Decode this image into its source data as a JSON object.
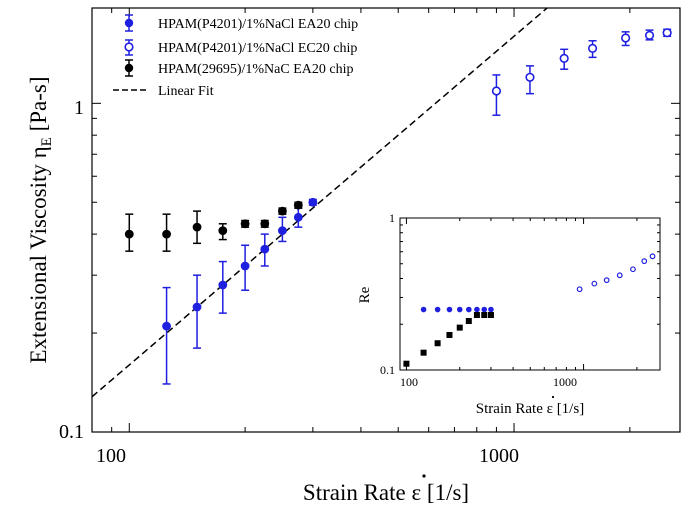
{
  "chart_data": [
    {
      "type": "scatter",
      "scale": "log-log",
      "xlabel": "Strain Rate ε̇ [1/s]",
      "ylabel": "Extensional Viscosity η_E [Pa-s]",
      "ylabel_main": "Extensional Viscosity η",
      "ylabel_sub": "E",
      "ylabel_unit": " [Pa-s]",
      "xlabel_main": "Strain Rate ",
      "xlabel_symbol": "ε",
      "xlabel_unit": " [1/s]",
      "xlim": [
        80,
        2700
      ],
      "ylim": [
        0.1,
        1.95
      ],
      "x_ticks": [
        {
          "value": 100,
          "label": "100"
        },
        {
          "value": 1000,
          "label": "1000"
        }
      ],
      "y_ticks": [
        {
          "value": 0.1,
          "label": "0.1"
        },
        {
          "value": 1,
          "label": "1"
        }
      ],
      "legend_position": "top-left",
      "series": [
        {
          "name": "HPAM(P4201)/1%NaCl EA20 chip",
          "color": "#1f1fe0",
          "marker": "filled-circle",
          "points": [
            {
              "x": 125,
              "y": 0.21,
              "lo": 0.14,
              "hi": 0.275
            },
            {
              "x": 150,
              "y": 0.24,
              "lo": 0.18,
              "hi": 0.3
            },
            {
              "x": 175,
              "y": 0.28,
              "lo": 0.23,
              "hi": 0.33
            },
            {
              "x": 200,
              "y": 0.32,
              "lo": 0.27,
              "hi": 0.37
            },
            {
              "x": 225,
              "y": 0.36,
              "lo": 0.32,
              "hi": 0.4
            },
            {
              "x": 250,
              "y": 0.41,
              "lo": 0.38,
              "hi": 0.45
            },
            {
              "x": 275,
              "y": 0.45,
              "lo": 0.42,
              "hi": 0.48
            },
            {
              "x": 300,
              "y": 0.5,
              "lo": 0.49,
              "hi": 0.51
            }
          ]
        },
        {
          "name": "HPAM(P4201)/1%NaCl EC20 chip",
          "color": "#1f1fe0",
          "marker": "open-circle",
          "points": [
            {
              "x": 900,
              "y": 1.09,
              "lo": 0.92,
              "hi": 1.22
            },
            {
              "x": 1100,
              "y": 1.2,
              "lo": 1.07,
              "hi": 1.3
            },
            {
              "x": 1350,
              "y": 1.37,
              "lo": 1.27,
              "hi": 1.46
            },
            {
              "x": 1600,
              "y": 1.47,
              "lo": 1.38,
              "hi": 1.55
            },
            {
              "x": 1950,
              "y": 1.58,
              "lo": 1.5,
              "hi": 1.65
            },
            {
              "x": 2250,
              "y": 1.61,
              "lo": 1.56,
              "hi": 1.67
            },
            {
              "x": 2500,
              "y": 1.64,
              "lo": 1.6,
              "hi": 1.68
            }
          ]
        },
        {
          "name": "HPAM(29695)/1%NaC EA20 chip",
          "color": "#000000",
          "marker": "filled-circle",
          "points": [
            {
              "x": 100,
              "y": 0.4,
              "lo": 0.355,
              "hi": 0.46
            },
            {
              "x": 125,
              "y": 0.4,
              "lo": 0.355,
              "hi": 0.46
            },
            {
              "x": 150,
              "y": 0.42,
              "lo": 0.375,
              "hi": 0.47
            },
            {
              "x": 175,
              "y": 0.41,
              "lo": 0.385,
              "hi": 0.43
            },
            {
              "x": 200,
              "y": 0.43,
              "lo": 0.42,
              "hi": 0.44
            },
            {
              "x": 225,
              "y": 0.43,
              "lo": 0.42,
              "hi": 0.44
            },
            {
              "x": 250,
              "y": 0.47,
              "lo": 0.46,
              "hi": 0.48
            },
            {
              "x": 275,
              "y": 0.49,
              "lo": 0.48,
              "hi": 0.5
            }
          ]
        },
        {
          "name": "Linear Fit",
          "color": "#000000",
          "marker": "dashed-line",
          "line": {
            "slope": 1,
            "through": {
              "x": 300,
              "y": 0.48
            }
          }
        }
      ]
    },
    {
      "type": "scatter",
      "scale": "log-log",
      "inset": true,
      "xlabel": "Strain Rate ε̇ [1/s]",
      "xlabel_main": "Strain Rate ",
      "xlabel_symbol": "ε",
      "xlabel_unit": " [1/s]",
      "ylabel": "Re",
      "xlim": [
        92,
        2700
      ],
      "ylim": [
        0.1,
        1
      ],
      "x_ticks": [
        {
          "value": 100,
          "label": "100"
        },
        {
          "value": 1000,
          "label": "1000"
        }
      ],
      "y_ticks": [
        {
          "value": 0.1,
          "label": "0.1"
        },
        {
          "value": 1,
          "label": "1"
        }
      ],
      "series": [
        {
          "name": "HPAM(P4201)/1%NaCl EA20 chip",
          "color": "#1f1fe0",
          "marker": "filled-circle",
          "points": [
            {
              "x": 125,
              "y": 0.25
            },
            {
              "x": 150,
              "y": 0.25
            },
            {
              "x": 175,
              "y": 0.25
            },
            {
              "x": 200,
              "y": 0.25
            },
            {
              "x": 225,
              "y": 0.25
            },
            {
              "x": 250,
              "y": 0.25
            },
            {
              "x": 275,
              "y": 0.25
            },
            {
              "x": 300,
              "y": 0.25
            }
          ]
        },
        {
          "name": "HPAM(P4201)/1%NaCl EC20 chip",
          "color": "#1f1fe0",
          "marker": "open-circle",
          "points": [
            {
              "x": 950,
              "y": 0.34
            },
            {
              "x": 1150,
              "y": 0.37
            },
            {
              "x": 1350,
              "y": 0.39
            },
            {
              "x": 1600,
              "y": 0.42
            },
            {
              "x": 1900,
              "y": 0.46
            },
            {
              "x": 2200,
              "y": 0.52
            },
            {
              "x": 2450,
              "y": 0.56
            }
          ]
        },
        {
          "name": "HPAM(29695)/1%NaC EA20 chip",
          "color": "#000000",
          "marker": "filled-square",
          "points": [
            {
              "x": 100,
              "y": 0.11
            },
            {
              "x": 125,
              "y": 0.13
            },
            {
              "x": 150,
              "y": 0.15
            },
            {
              "x": 175,
              "y": 0.17
            },
            {
              "x": 200,
              "y": 0.19
            },
            {
              "x": 225,
              "y": 0.21
            },
            {
              "x": 250,
              "y": 0.23
            },
            {
              "x": 275,
              "y": 0.23
            },
            {
              "x": 300,
              "y": 0.23
            }
          ]
        }
      ]
    }
  ]
}
